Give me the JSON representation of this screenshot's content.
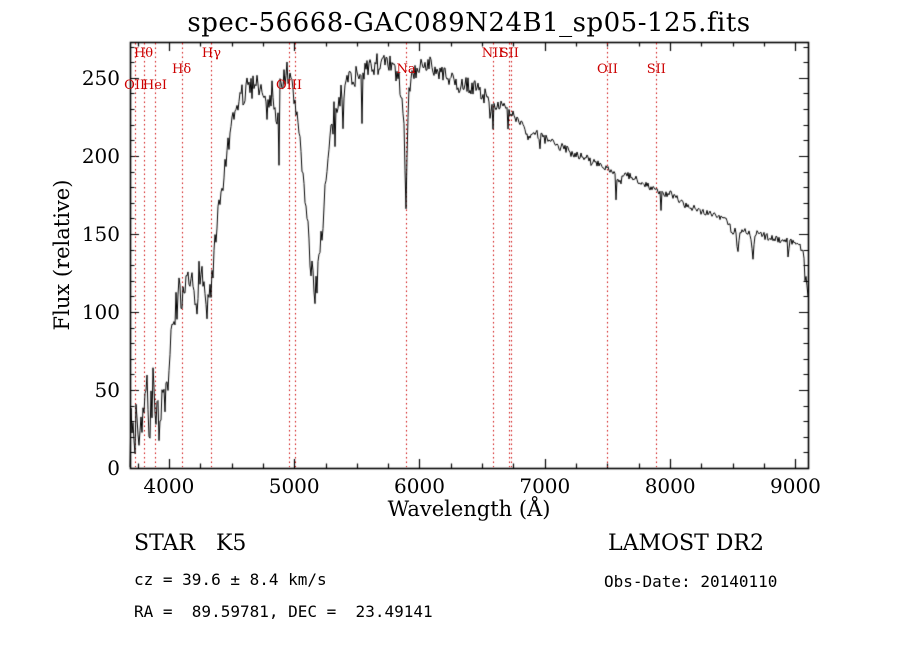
{
  "chart_data": {
    "type": "line",
    "title": "spec-56668-GAC089N24B1_sp05-125.fits",
    "xlabel": "Wavelength (Å)",
    "ylabel": "Flux (relative)",
    "xlim": [
      3690,
      9100
    ],
    "ylim": [
      0,
      273
    ],
    "xticks": [
      4000,
      5000,
      6000,
      7000,
      8000,
      9000
    ],
    "yticks": [
      0,
      50,
      100,
      150,
      200,
      250
    ],
    "x_minor_step": 250,
    "y_minor_step": 10,
    "grid": false,
    "legend": "none",
    "marker_color": "#cc0000",
    "line_markers": [
      {
        "wavelength": 3727,
        "label": "OII",
        "row": 2
      },
      {
        "wavelength": 3798,
        "label": "Hθ",
        "row": 0
      },
      {
        "wavelength": 3889,
        "label": "HeI",
        "row": 2
      },
      {
        "wavelength": 4102,
        "label": "Hδ",
        "row": 1
      },
      {
        "wavelength": 4340,
        "label": "Hγ",
        "row": 0
      },
      {
        "wavelength": 4959,
        "label": "OIII",
        "row": 2
      },
      {
        "wavelength": 5007,
        "label": "",
        "row": 2
      },
      {
        "wavelength": 5893,
        "label": "Na",
        "row": 1
      },
      {
        "wavelength": 6583,
        "label": "NII",
        "row": 0
      },
      {
        "wavelength": 6717,
        "label": "SII",
        "row": 0
      },
      {
        "wavelength": 6731,
        "label": "",
        "row": 0
      },
      {
        "wavelength": 7500,
        "label": "OII",
        "row": 1
      },
      {
        "wavelength": 7890,
        "label": "SII",
        "row": 1
      }
    ],
    "series": [
      {
        "name": "spectrum",
        "color": "#000000",
        "anchors": [
          [
            3690,
            3
          ],
          [
            3697,
            28
          ],
          [
            3703,
            10
          ],
          [
            3710,
            38
          ],
          [
            3718,
            22
          ],
          [
            3727,
            8
          ],
          [
            3735,
            30
          ],
          [
            3745,
            42
          ],
          [
            3755,
            25
          ],
          [
            3765,
            18
          ],
          [
            3775,
            45
          ],
          [
            3785,
            32
          ],
          [
            3795,
            38
          ],
          [
            3805,
            52
          ],
          [
            3815,
            40
          ],
          [
            3825,
            58
          ],
          [
            3835,
            28
          ],
          [
            3845,
            22
          ],
          [
            3855,
            45
          ],
          [
            3865,
            33
          ],
          [
            3875,
            55
          ],
          [
            3885,
            42
          ],
          [
            3895,
            35
          ],
          [
            3905,
            48
          ],
          [
            3915,
            38
          ],
          [
            3925,
            26
          ],
          [
            3933,
            12
          ],
          [
            3945,
            38
          ],
          [
            3957,
            52
          ],
          [
            3968,
            26
          ],
          [
            3980,
            50
          ],
          [
            3995,
            62
          ],
          [
            4010,
            72
          ],
          [
            4025,
            85
          ],
          [
            4040,
            92
          ],
          [
            4055,
            102
          ],
          [
            4070,
            108
          ],
          [
            4085,
            112
          ],
          [
            4101,
            90
          ],
          [
            4115,
            108
          ],
          [
            4130,
            115
          ],
          [
            4145,
            118
          ],
          [
            4160,
            112
          ],
          [
            4175,
            120
          ],
          [
            4190,
            116
          ],
          [
            4205,
            112
          ],
          [
            4220,
            104
          ],
          [
            4235,
            122
          ],
          [
            4250,
            128
          ],
          [
            4265,
            124
          ],
          [
            4280,
            115
          ],
          [
            4295,
            108
          ],
          [
            4307,
            98
          ],
          [
            4320,
            115
          ],
          [
            4333,
            108
          ],
          [
            4345,
            118
          ],
          [
            4360,
            132
          ],
          [
            4375,
            145
          ],
          [
            4390,
            158
          ],
          [
            4410,
            170
          ],
          [
            4430,
            182
          ],
          [
            4455,
            196
          ],
          [
            4480,
            208
          ],
          [
            4505,
            218
          ],
          [
            4530,
            226
          ],
          [
            4555,
            234
          ],
          [
            4580,
            240
          ],
          [
            4605,
            236
          ],
          [
            4630,
            246
          ],
          [
            4655,
            242
          ],
          [
            4680,
            250
          ],
          [
            4705,
            248
          ],
          [
            4730,
            244
          ],
          [
            4755,
            238
          ],
          [
            4780,
            230
          ],
          [
            4805,
            236
          ],
          [
            4830,
            242
          ],
          [
            4861,
            224
          ],
          [
            4880,
            240
          ],
          [
            4900,
            248
          ],
          [
            4920,
            252
          ],
          [
            4940,
            254
          ],
          [
            4960,
            250
          ],
          [
            4980,
            244
          ],
          [
            5000,
            236
          ],
          [
            5020,
            228
          ],
          [
            5040,
            218
          ],
          [
            5060,
            200
          ],
          [
            5080,
            178
          ],
          [
            5100,
            158
          ],
          [
            5120,
            140
          ],
          [
            5140,
            124
          ],
          [
            5160,
            112
          ],
          [
            5180,
            120
          ],
          [
            5200,
            138
          ],
          [
            5220,
            152
          ],
          [
            5240,
            170
          ],
          [
            5260,
            188
          ],
          [
            5280,
            204
          ],
          [
            5300,
            216
          ],
          [
            5320,
            226
          ],
          [
            5340,
            232
          ],
          [
            5360,
            236
          ],
          [
            5385,
            242
          ],
          [
            5410,
            246
          ],
          [
            5435,
            250
          ],
          [
            5460,
            252
          ],
          [
            5485,
            250
          ],
          [
            5510,
            254
          ],
          [
            5535,
            252
          ],
          [
            5560,
            256
          ],
          [
            5585,
            254
          ],
          [
            5610,
            256
          ],
          [
            5635,
            258
          ],
          [
            5660,
            260
          ],
          [
            5685,
            257
          ],
          [
            5710,
            259
          ],
          [
            5735,
            257
          ],
          [
            5760,
            258
          ],
          [
            5785,
            256
          ],
          [
            5810,
            253
          ],
          [
            5835,
            248
          ],
          [
            5860,
            238
          ],
          [
            5880,
            215
          ],
          [
            5893,
            158
          ],
          [
            5903,
            210
          ],
          [
            5915,
            240
          ],
          [
            5930,
            248
          ],
          [
            5950,
            252
          ],
          [
            5975,
            255
          ],
          [
            6000,
            257
          ],
          [
            6025,
            258
          ],
          [
            6050,
            259
          ],
          [
            6075,
            260
          ],
          [
            6100,
            257
          ],
          [
            6125,
            254
          ],
          [
            6150,
            252
          ],
          [
            6175,
            254
          ],
          [
            6200,
            252
          ],
          [
            6225,
            250
          ],
          [
            6250,
            249
          ],
          [
            6275,
            247
          ],
          [
            6300,
            244
          ],
          [
            6325,
            246
          ],
          [
            6350,
            244
          ],
          [
            6375,
            246
          ],
          [
            6400,
            245
          ],
          [
            6425,
            243
          ],
          [
            6450,
            245
          ],
          [
            6475,
            242
          ],
          [
            6500,
            240
          ],
          [
            6525,
            238
          ],
          [
            6550,
            234
          ],
          [
            6563,
            228
          ],
          [
            6578,
            236
          ],
          [
            6600,
            235
          ],
          [
            6625,
            233
          ],
          [
            6650,
            231
          ],
          [
            6675,
            230
          ],
          [
            6700,
            228
          ],
          [
            6725,
            227
          ],
          [
            6750,
            226
          ],
          [
            6775,
            224
          ],
          [
            6800,
            223
          ],
          [
            6825,
            221
          ],
          [
            6850,
            216
          ],
          [
            6870,
            210
          ],
          [
            6890,
            216
          ],
          [
            6915,
            215
          ],
          [
            6940,
            214
          ],
          [
            6965,
            212
          ],
          [
            6990,
            211
          ],
          [
            7020,
            210
          ],
          [
            7060,
            208
          ],
          [
            7100,
            207
          ],
          [
            7140,
            205
          ],
          [
            7180,
            204
          ],
          [
            7220,
            202
          ],
          [
            7260,
            201
          ],
          [
            7300,
            199
          ],
          [
            7340,
            198
          ],
          [
            7380,
            196
          ],
          [
            7420,
            195
          ],
          [
            7460,
            194
          ],
          [
            7500,
            192
          ],
          [
            7540,
            189
          ],
          [
            7570,
            185
          ],
          [
            7594,
            180
          ],
          [
            7615,
            186
          ],
          [
            7640,
            188
          ],
          [
            7670,
            187
          ],
          [
            7700,
            186
          ],
          [
            7730,
            185
          ],
          [
            7760,
            184
          ],
          [
            7790,
            183
          ],
          [
            7820,
            181
          ],
          [
            7850,
            180
          ],
          [
            7880,
            178
          ],
          [
            7910,
            177
          ],
          [
            7940,
            176
          ],
          [
            7970,
            175
          ],
          [
            8000,
            176
          ],
          [
            8030,
            174
          ],
          [
            8060,
            172
          ],
          [
            8090,
            171
          ],
          [
            8120,
            170
          ],
          [
            8150,
            168
          ],
          [
            8180,
            167
          ],
          [
            8210,
            166
          ],
          [
            8240,
            165
          ],
          [
            8270,
            164
          ],
          [
            8300,
            164
          ],
          [
            8330,
            163
          ],
          [
            8360,
            162
          ],
          [
            8390,
            161
          ],
          [
            8420,
            160
          ],
          [
            8450,
            159
          ],
          [
            8480,
            156
          ],
          [
            8498,
            147
          ],
          [
            8515,
            155
          ],
          [
            8542,
            139
          ],
          [
            8560,
            153
          ],
          [
            8590,
            152
          ],
          [
            8620,
            151
          ],
          [
            8640,
            149
          ],
          [
            8662,
            135
          ],
          [
            8680,
            151
          ],
          [
            8710,
            150
          ],
          [
            8740,
            149
          ],
          [
            8770,
            148
          ],
          [
            8800,
            148
          ],
          [
            8830,
            147
          ],
          [
            8860,
            147
          ],
          [
            8890,
            146
          ],
          [
            8920,
            146
          ],
          [
            8950,
            145
          ],
          [
            8980,
            145
          ],
          [
            9010,
            144
          ],
          [
            9040,
            142
          ],
          [
            9065,
            138
          ],
          [
            9085,
            124
          ],
          [
            9100,
            112
          ]
        ]
      }
    ],
    "noise": {
      "seed": 7,
      "zones": [
        {
          "max": 3950,
          "amp": 14
        },
        {
          "max": 4400,
          "amp": 11
        },
        {
          "max": 5050,
          "amp": 8
        },
        {
          "max": 5350,
          "amp": 10
        },
        {
          "max": 5900,
          "amp": 7
        },
        {
          "max": 6700,
          "amp": 5
        },
        {
          "max": 7600,
          "amp": 3
        },
        {
          "max": 9200,
          "amp": 2.3
        }
      ],
      "spikes": [
        {
          "max": 4400,
          "prob": 0.05,
          "depth": 22
        },
        {
          "max": 6600,
          "prob": 0.05,
          "depth": 40
        },
        {
          "max": 9200,
          "prob": 0.035,
          "depth": 12
        }
      ]
    }
  },
  "annotations": {
    "classification": "STAR   K5",
    "survey": "LAMOST DR2",
    "cz": "cz = 39.6 ± 8.4 km/s",
    "obs_date": "Obs-Date: 20140110",
    "ra_dec": "RA =  89.59781, DEC =  23.49141"
  }
}
